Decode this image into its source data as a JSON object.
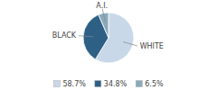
{
  "chart_data": {
    "type": "pie",
    "categories": [
      "WHITE",
      "BLACK",
      "A.I."
    ],
    "values": [
      58.7,
      34.8,
      6.5
    ],
    "value_labels": [
      "58.7%",
      "34.8%",
      "6.5%"
    ],
    "colors": [
      "#c8d8e8",
      "#2e5f85",
      "#8aaabb"
    ],
    "legend": "bottom"
  }
}
